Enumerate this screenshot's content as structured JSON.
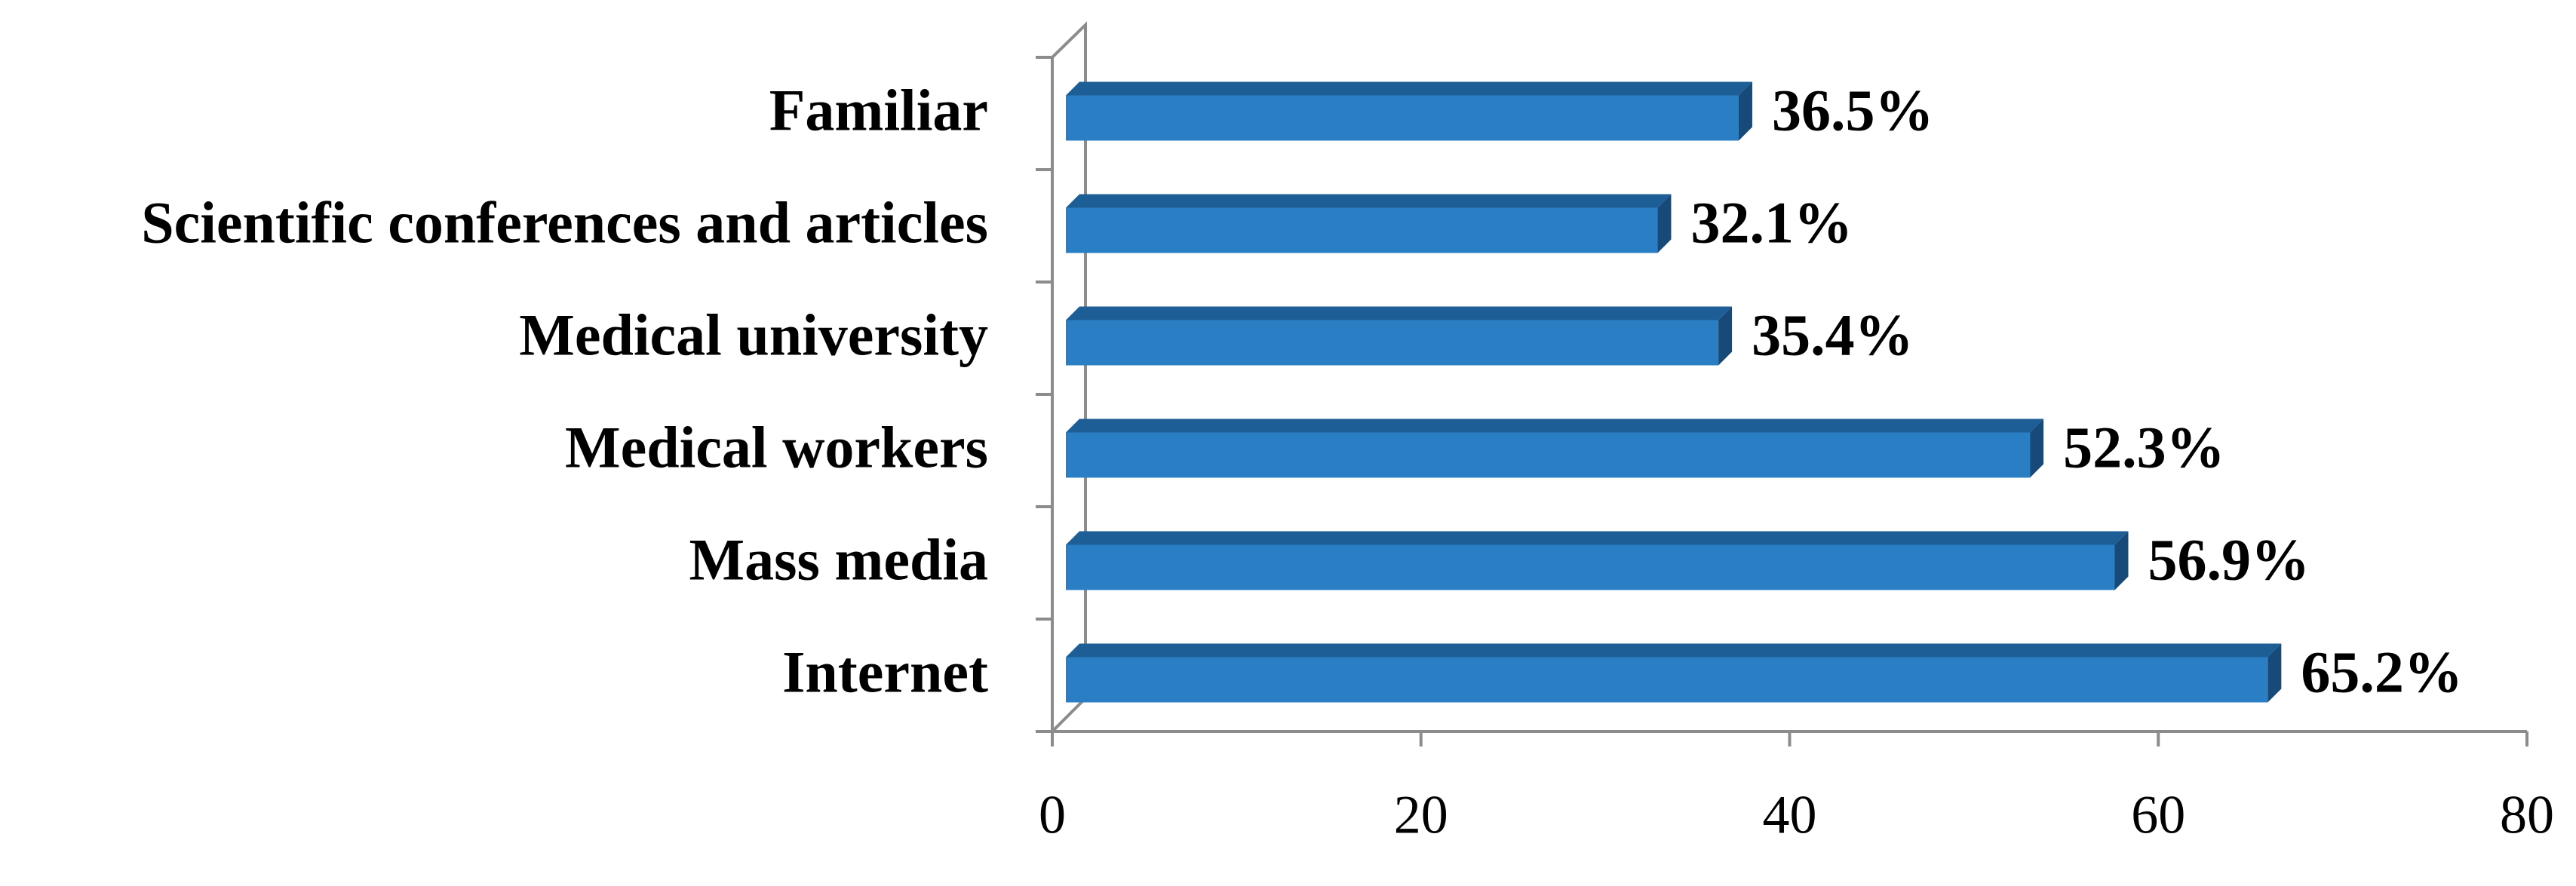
{
  "chart_data": {
    "type": "bar",
    "orientation": "horizontal",
    "categories": [
      "Familiar",
      "Scientific conferences and articles",
      "Medical university",
      "Medical workers",
      "Mass media",
      "Internet"
    ],
    "values": [
      36.5,
      32.1,
      35.4,
      52.3,
      56.9,
      65.2
    ],
    "value_labels": [
      "36.5%",
      "32.1%",
      "35.4%",
      "52.3%",
      "56.9%",
      "65.2%"
    ],
    "color": "#2a7fc4",
    "xlim": [
      0,
      80
    ],
    "xticks": [
      0,
      20,
      40,
      60,
      80
    ],
    "grid": false
  }
}
